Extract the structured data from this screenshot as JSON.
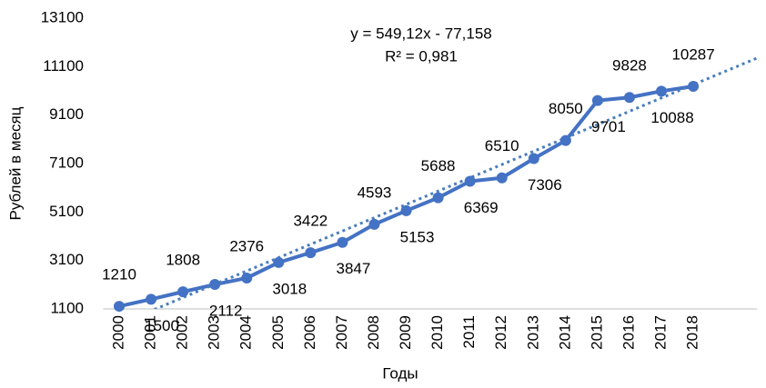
{
  "chart_data": {
    "type": "line",
    "x_label": "Годы",
    "y_label": "Рублей в месяц",
    "categories": [
      "2000",
      "2001",
      "2002",
      "2003",
      "2004",
      "2005",
      "2006",
      "2007",
      "2008",
      "2009",
      "2010",
      "2011",
      "2012",
      "2013",
      "2014",
      "2015",
      "2016",
      "2017",
      "2018"
    ],
    "series": [
      {
        "name": "Рублей в месяц",
        "color": "#4472c4",
        "values": [
          1210,
          1500,
          1808,
          2112,
          2376,
          3018,
          3422,
          3847,
          4593,
          5153,
          5688,
          6369,
          6510,
          7306,
          8050,
          9701,
          9828,
          10088,
          10287
        ]
      }
    ],
    "trendline": {
      "equation": "y = 549,12x - 77,158",
      "r2": "R² = 0,981",
      "slope": 549.12,
      "intercept": -77.158,
      "forward": 2,
      "color": "#4a7ebb"
    },
    "ylim": [
      1100,
      13100
    ],
    "yticks": [
      1100,
      3100,
      5100,
      7100,
      9100,
      11100,
      13100
    ],
    "grid": false
  }
}
